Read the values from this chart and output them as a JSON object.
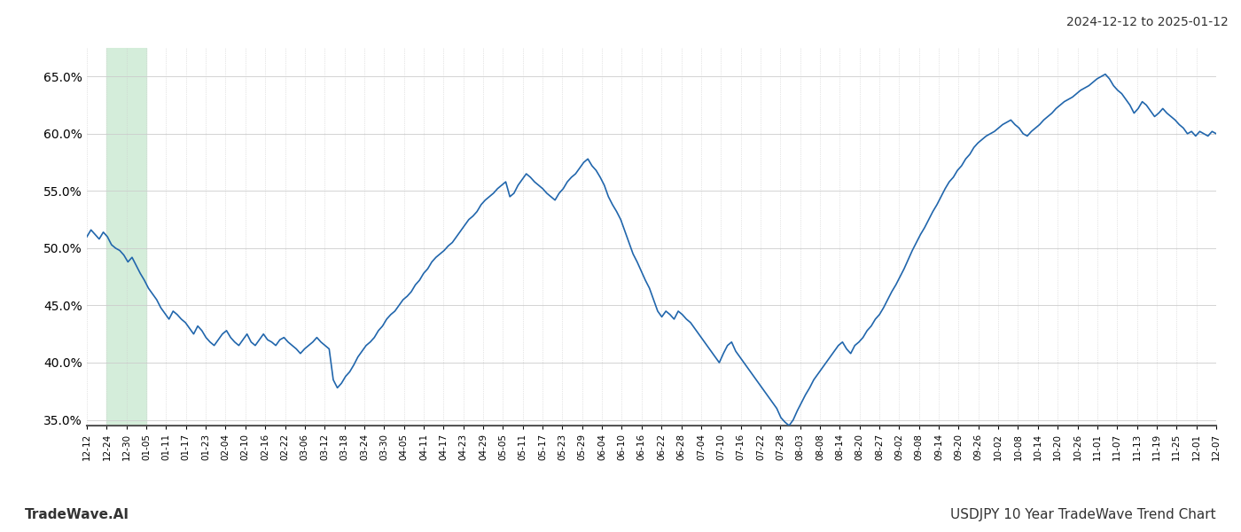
{
  "title_top_right": "2024-12-12 to 2025-01-12",
  "footer_left": "TradeWave.AI",
  "footer_right": "USDJPY 10 Year TradeWave Trend Chart",
  "line_color": "#2166ac",
  "shade_color": "#d4edda",
  "background_color": "#ffffff",
  "grid_color": "#cccccc",
  "ylim": [
    0.345,
    0.675
  ],
  "yticks": [
    0.35,
    0.4,
    0.45,
    0.5,
    0.55,
    0.6,
    0.65
  ],
  "ytick_labels": [
    "35.0%",
    "40.0%",
    "45.0%",
    "50.0%",
    "55.0%",
    "60.0%",
    "65.0%"
  ],
  "shade_xstart": 1,
  "shade_xend": 3,
  "xtick_labels": [
    "12-12",
    "12-24",
    "12-30",
    "01-05",
    "01-11",
    "01-17",
    "01-23",
    "02-04",
    "02-10",
    "02-16",
    "02-22",
    "03-06",
    "03-12",
    "03-18",
    "03-24",
    "03-30",
    "04-05",
    "04-11",
    "04-17",
    "04-23",
    "04-29",
    "05-05",
    "05-11",
    "05-17",
    "05-23",
    "05-29",
    "06-04",
    "06-10",
    "06-16",
    "06-22",
    "06-28",
    "07-04",
    "07-10",
    "07-16",
    "07-22",
    "07-28",
    "08-03",
    "08-08",
    "08-14",
    "08-20",
    "08-27",
    "09-02",
    "09-08",
    "09-14",
    "09-20",
    "09-26",
    "10-02",
    "10-08",
    "10-14",
    "10-20",
    "10-26",
    "11-01",
    "11-07",
    "11-13",
    "11-19",
    "11-25",
    "12-01",
    "12-07"
  ],
  "y_values": [
    0.51,
    0.516,
    0.512,
    0.508,
    0.514,
    0.51,
    0.503,
    0.5,
    0.498,
    0.494,
    0.488,
    0.492,
    0.485,
    0.478,
    0.472,
    0.465,
    0.46,
    0.455,
    0.448,
    0.443,
    0.438,
    0.445,
    0.442,
    0.438,
    0.435,
    0.43,
    0.425,
    0.432,
    0.428,
    0.422,
    0.418,
    0.415,
    0.42,
    0.425,
    0.428,
    0.422,
    0.418,
    0.415,
    0.42,
    0.425,
    0.418,
    0.415,
    0.42,
    0.425,
    0.42,
    0.418,
    0.415,
    0.42,
    0.422,
    0.418,
    0.415,
    0.412,
    0.408,
    0.412,
    0.415,
    0.418,
    0.422,
    0.418,
    0.415,
    0.412,
    0.385,
    0.378,
    0.382,
    0.388,
    0.392,
    0.398,
    0.405,
    0.41,
    0.415,
    0.418,
    0.422,
    0.428,
    0.432,
    0.438,
    0.442,
    0.445,
    0.45,
    0.455,
    0.458,
    0.462,
    0.468,
    0.472,
    0.478,
    0.482,
    0.488,
    0.492,
    0.495,
    0.498,
    0.502,
    0.505,
    0.51,
    0.515,
    0.52,
    0.525,
    0.528,
    0.532,
    0.538,
    0.542,
    0.545,
    0.548,
    0.552,
    0.555,
    0.558,
    0.545,
    0.548,
    0.555,
    0.56,
    0.565,
    0.562,
    0.558,
    0.555,
    0.552,
    0.548,
    0.545,
    0.542,
    0.548,
    0.552,
    0.558,
    0.562,
    0.565,
    0.57,
    0.575,
    0.578,
    0.572,
    0.568,
    0.562,
    0.555,
    0.545,
    0.538,
    0.532,
    0.525,
    0.515,
    0.505,
    0.495,
    0.488,
    0.48,
    0.472,
    0.465,
    0.455,
    0.445,
    0.44,
    0.445,
    0.442,
    0.438,
    0.445,
    0.442,
    0.438,
    0.435,
    0.43,
    0.425,
    0.42,
    0.415,
    0.41,
    0.405,
    0.4,
    0.408,
    0.415,
    0.418,
    0.41,
    0.405,
    0.4,
    0.395,
    0.39,
    0.385,
    0.38,
    0.375,
    0.37,
    0.365,
    0.36,
    0.352,
    0.348,
    0.345,
    0.35,
    0.358,
    0.365,
    0.372,
    0.378,
    0.385,
    0.39,
    0.395,
    0.4,
    0.405,
    0.41,
    0.415,
    0.418,
    0.412,
    0.408,
    0.415,
    0.418,
    0.422,
    0.428,
    0.432,
    0.438,
    0.442,
    0.448,
    0.455,
    0.462,
    0.468,
    0.475,
    0.482,
    0.49,
    0.498,
    0.505,
    0.512,
    0.518,
    0.525,
    0.532,
    0.538,
    0.545,
    0.552,
    0.558,
    0.562,
    0.568,
    0.572,
    0.578,
    0.582,
    0.588,
    0.592,
    0.595,
    0.598,
    0.6,
    0.602,
    0.605,
    0.608,
    0.61,
    0.612,
    0.608,
    0.605,
    0.6,
    0.598,
    0.602,
    0.605,
    0.608,
    0.612,
    0.615,
    0.618,
    0.622,
    0.625,
    0.628,
    0.63,
    0.632,
    0.635,
    0.638,
    0.64,
    0.642,
    0.645,
    0.648,
    0.65,
    0.652,
    0.648,
    0.642,
    0.638,
    0.635,
    0.63,
    0.625,
    0.618,
    0.622,
    0.628,
    0.625,
    0.62,
    0.615,
    0.618,
    0.622,
    0.618,
    0.615,
    0.612,
    0.608,
    0.605,
    0.6,
    0.602,
    0.598,
    0.602,
    0.6,
    0.598,
    0.602,
    0.6
  ]
}
